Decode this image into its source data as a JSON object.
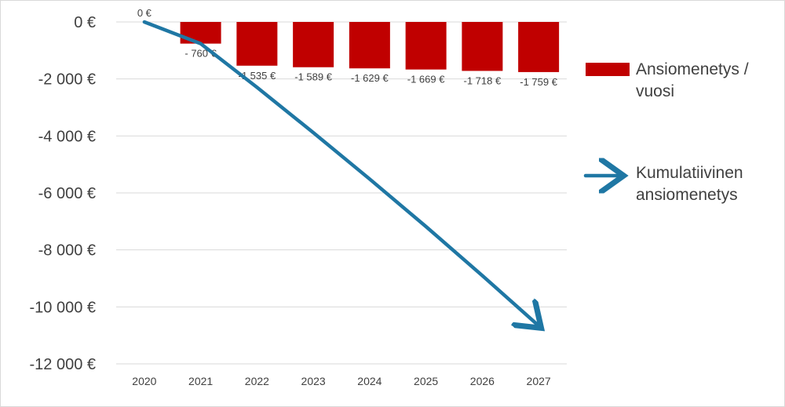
{
  "chart_data": {
    "type": "bar",
    "title": "",
    "xlabel": "",
    "ylabel": "",
    "categories": [
      "2020",
      "2021",
      "2022",
      "2023",
      "2024",
      "2025",
      "2026",
      "2027"
    ],
    "series": [
      {
        "name": "Ansiomenetys / vuosi",
        "kind": "bar",
        "color": "#C00000",
        "values": [
          0,
          -760,
          -1535,
          -1589,
          -1629,
          -1669,
          -1718,
          -1759
        ],
        "labels": [
          "0 €",
          "- 760 €",
          "-1 535 €",
          "-1 589 €",
          "-1 629 €",
          "-1 669 €",
          "-1 718 €",
          "-1 759 €"
        ]
      },
      {
        "name": "Kumulatiivinen ansiomenetys",
        "kind": "line",
        "color": "#1F77A4",
        "values": [
          0,
          -760,
          -2295,
          -3884,
          -5513,
          -7182,
          -8900,
          -10659
        ]
      }
    ],
    "ylim": [
      -12000,
      0
    ],
    "yticks": [
      0,
      -2000,
      -4000,
      -6000,
      -8000,
      -10000,
      -12000
    ],
    "ytick_labels": [
      "0 €",
      "-2 000 €",
      "-4 000 €",
      "-6 000 €",
      "-8 000 €",
      "-10 000 €",
      "-12 000 €"
    ],
    "grid": true,
    "legend": {
      "placement": "right",
      "entries": [
        {
          "lines": [
            "Ansiomenetys /",
            "vuosi"
          ]
        },
        {
          "lines": [
            "Kumulatiivinen",
            "ansiomenetys"
          ]
        }
      ]
    }
  }
}
